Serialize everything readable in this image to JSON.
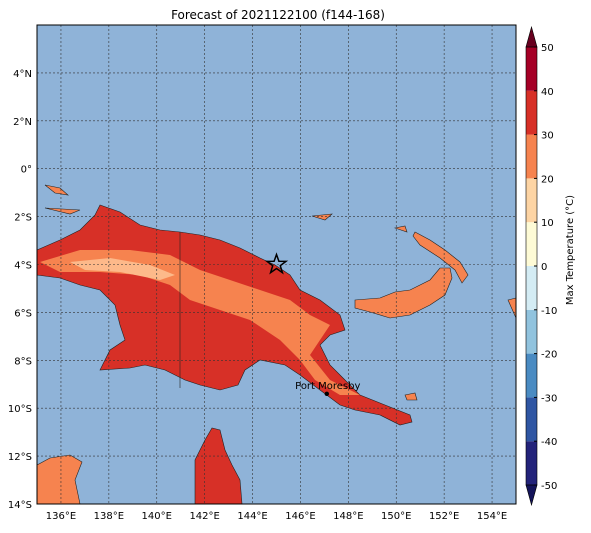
{
  "map": {
    "title": "Forecast of 2021122100 (f144-168)",
    "lon_range": [
      135,
      155
    ],
    "lat_range": [
      -14,
      6
    ],
    "lon_ticks": [
      {
        "value": 136,
        "label": "136°E"
      },
      {
        "value": 138,
        "label": "138°E"
      },
      {
        "value": 140,
        "label": "140°E"
      },
      {
        "value": 142,
        "label": "142°E"
      },
      {
        "value": 144,
        "label": "144°E"
      },
      {
        "value": 146,
        "label": "146°E"
      },
      {
        "value": 148,
        "label": "148°E"
      },
      {
        "value": 150,
        "label": "150°E"
      },
      {
        "value": 152,
        "label": "152°E"
      },
      {
        "value": 154,
        "label": "154°E"
      }
    ],
    "lat_ticks": [
      {
        "value": 4,
        "label": "4°N"
      },
      {
        "value": 2,
        "label": "2°N"
      },
      {
        "value": 0,
        "label": "0°"
      },
      {
        "value": -2,
        "label": "2°S"
      },
      {
        "value": -4,
        "label": "4°S"
      },
      {
        "value": -6,
        "label": "6°S"
      },
      {
        "value": -8,
        "label": "8°S"
      },
      {
        "value": -10,
        "label": "10°S"
      },
      {
        "value": -12,
        "label": "12°S"
      },
      {
        "value": -14,
        "label": "14°S"
      }
    ],
    "grid": true,
    "colorbar": {
      "label": "Max Temperature (°C)",
      "ticks": [
        -50,
        -40,
        -30,
        -20,
        -10,
        0,
        10,
        20,
        30,
        40,
        50
      ],
      "colors": [
        "#23237a",
        "#2f56a3",
        "#4a8bc2",
        "#91c3de",
        "#d4ecf4",
        "#fefbd6",
        "#fdd4a4",
        "#f6834f",
        "#d73027",
        "#a50026"
      ],
      "under_color": "#14145a",
      "over_color": "#67001f"
    },
    "star": {
      "lon": 145,
      "lat": -4
    },
    "city": {
      "name": "Port Moresby",
      "lon": 147.1,
      "lat": -9.4
    }
  }
}
